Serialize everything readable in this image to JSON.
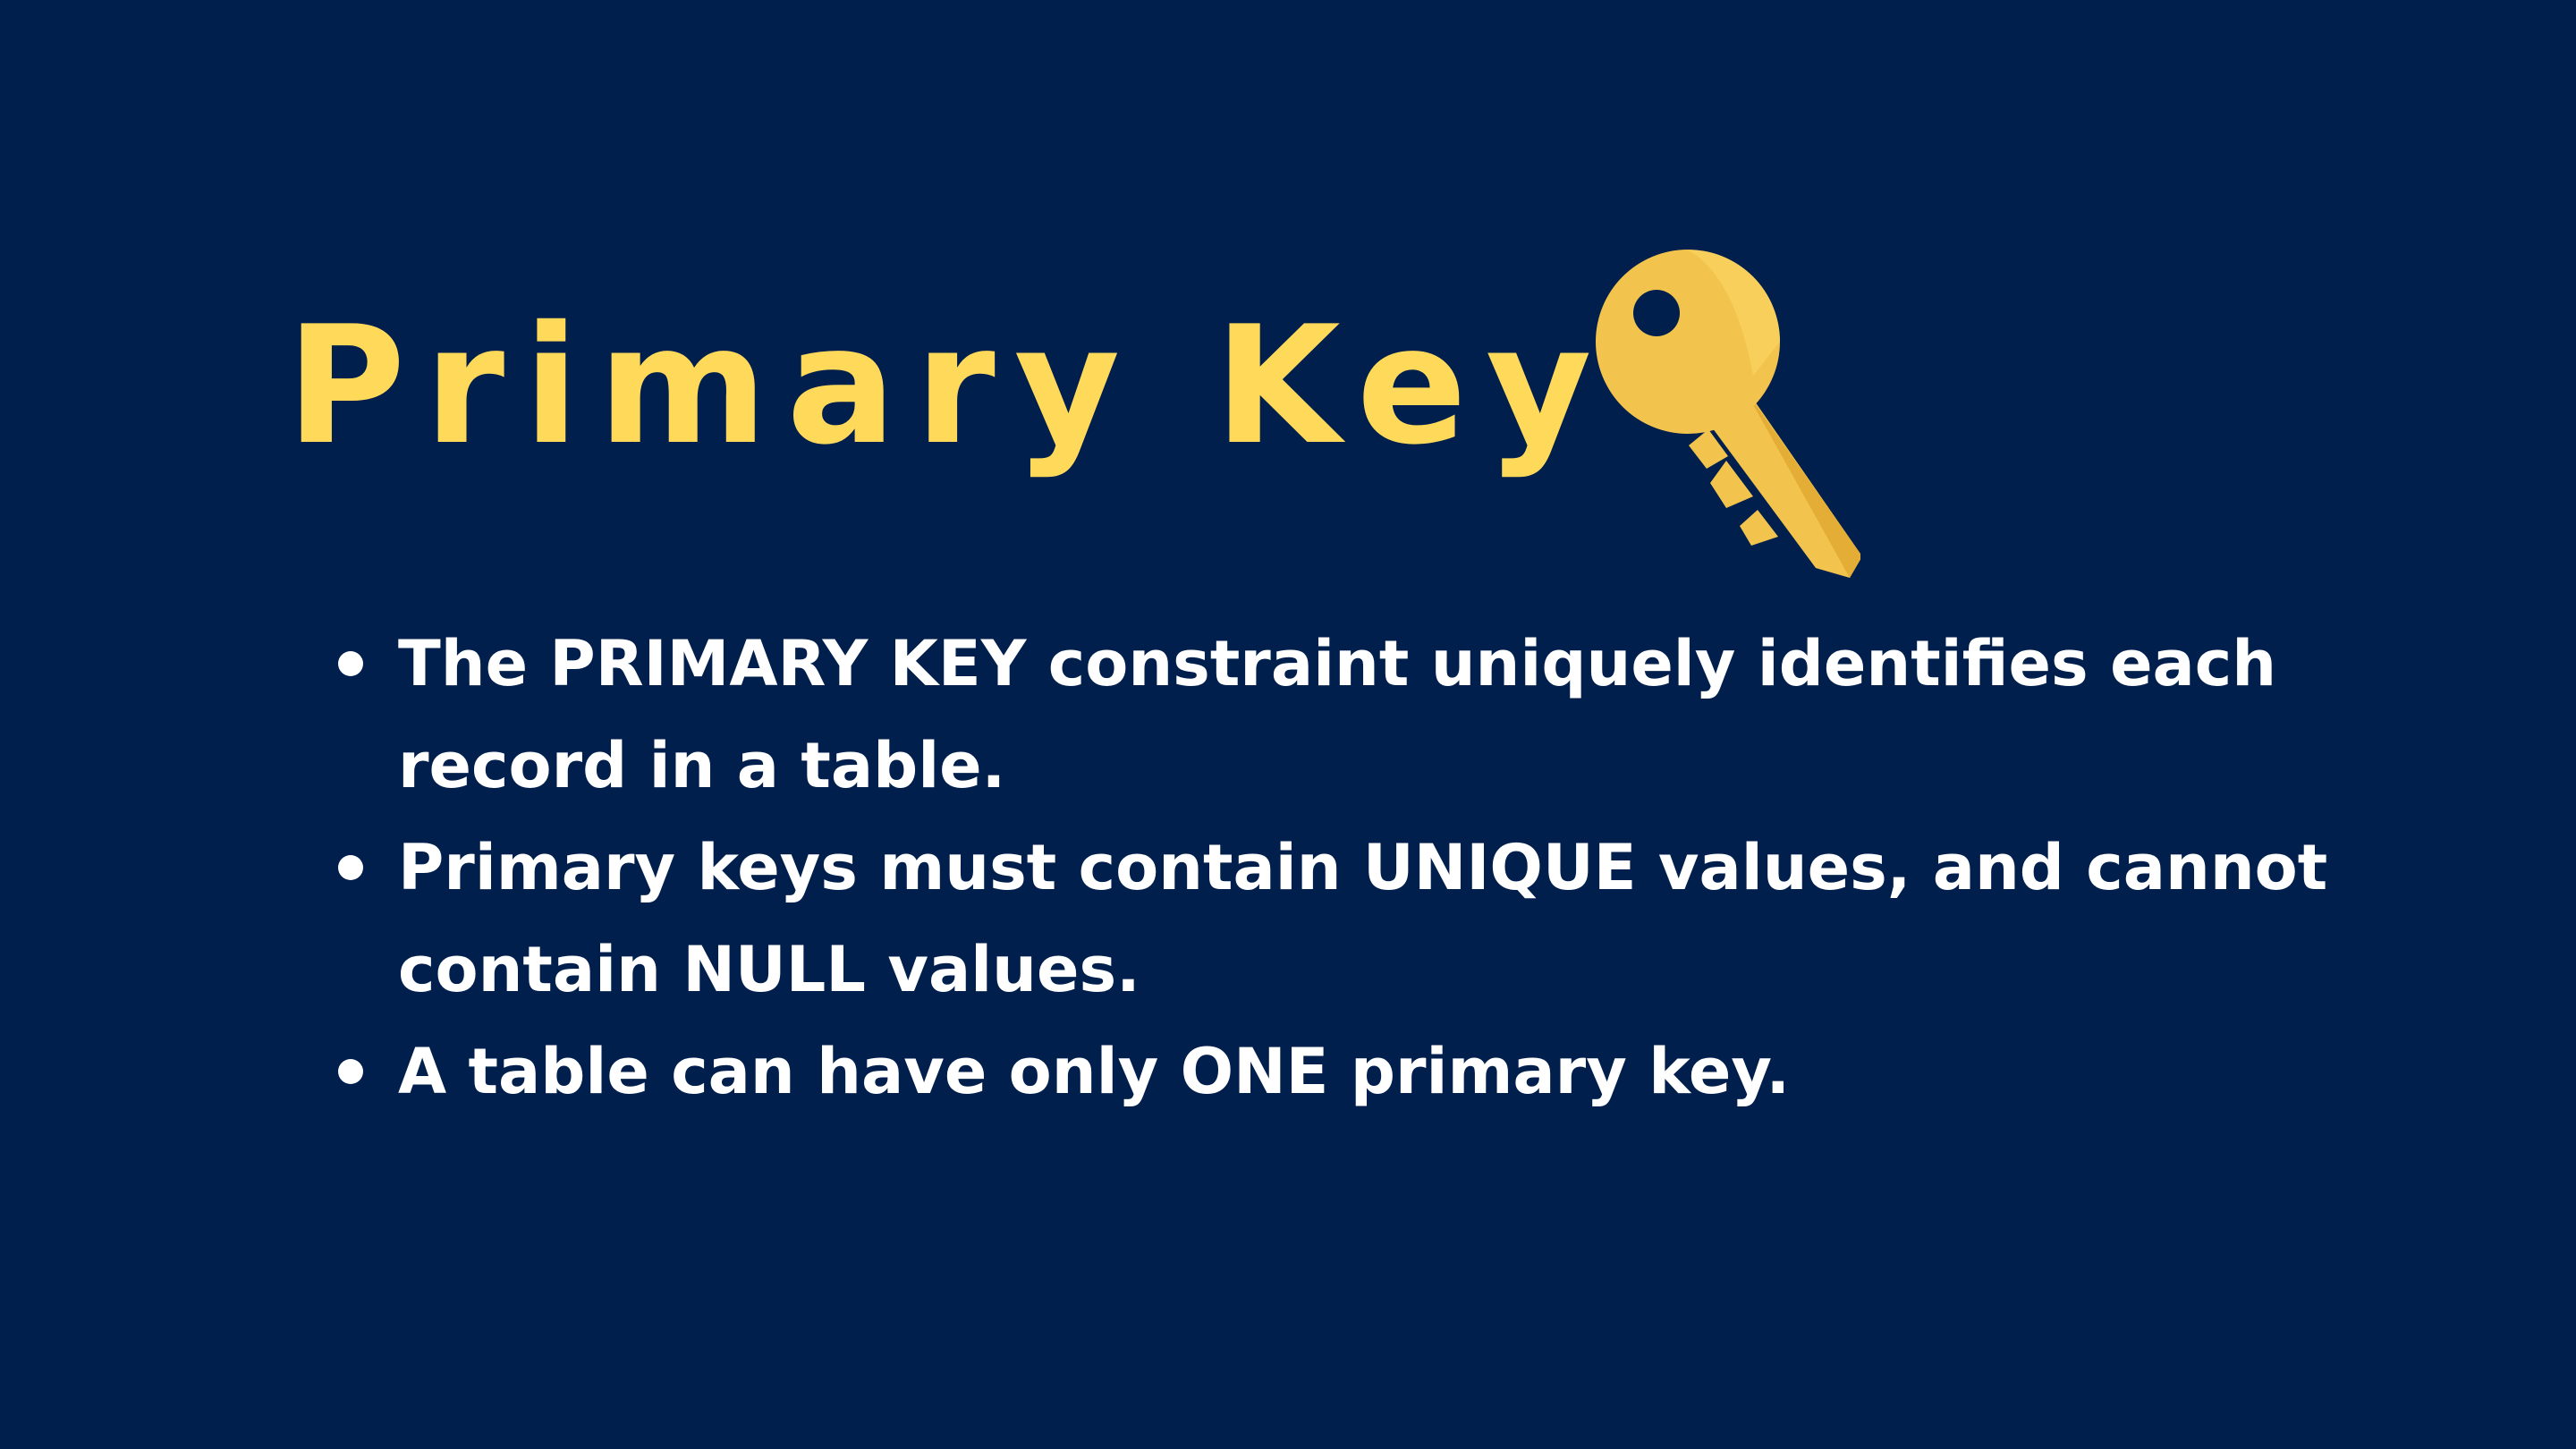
{
  "colors": {
    "background": "#001f4d",
    "title": "#ffd95a",
    "text": "#ffffff",
    "key_main": "#f2c44e",
    "key_light": "#ffd866",
    "key_shadow": "#e3ad36"
  },
  "slide": {
    "title": "Primary Key",
    "title_icon": "key-icon",
    "bullets": [
      "The PRIMARY KEY constraint uniquely identifies each record in a table.",
      "Primary keys must contain UNIQUE values, and cannot contain NULL values.",
      "A table can have only ONE primary key."
    ]
  }
}
